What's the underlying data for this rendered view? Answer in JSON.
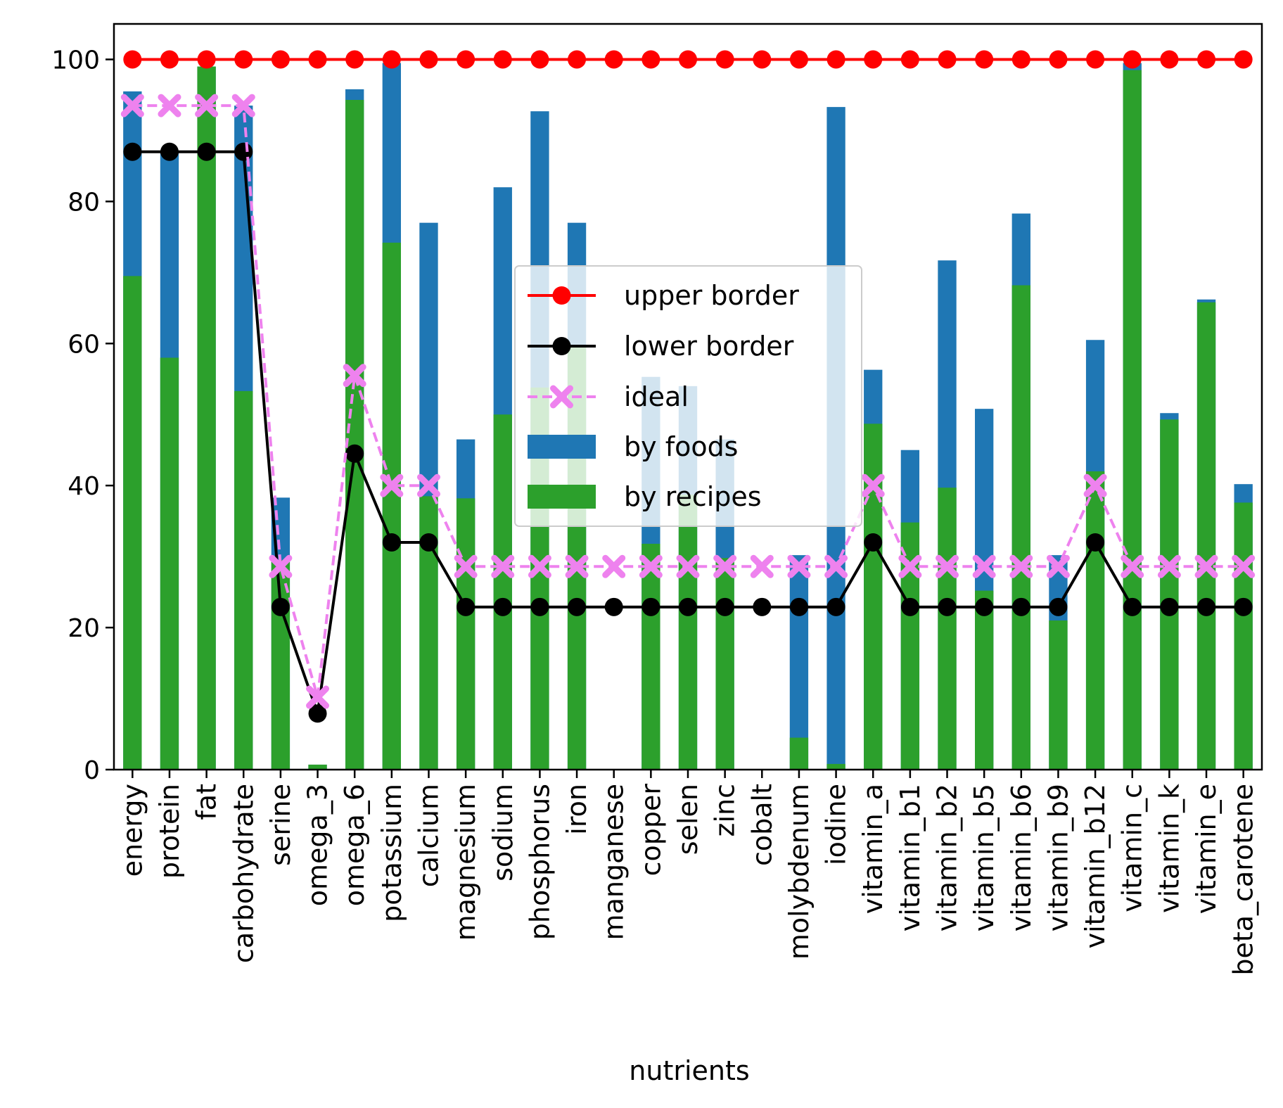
{
  "chart_data": {
    "type": "bar",
    "xlabel": "nutrients",
    "ylabel": "",
    "ylim": [
      0,
      105
    ],
    "yticks": [
      0,
      20,
      40,
      60,
      80,
      100
    ],
    "grid": false,
    "legend_position": "center",
    "categories": [
      "energy",
      "protein",
      "fat",
      "carbohydrate",
      "serine",
      "omega_3",
      "omega_6",
      "potassium",
      "calcium",
      "magnesium",
      "sodium",
      "phosphorus",
      "iron",
      "manganese",
      "copper",
      "selen",
      "zinc",
      "cobalt",
      "molybdenum",
      "iodine",
      "vitamin_a",
      "vitamin_b1",
      "vitamin_b2",
      "vitamin_b5",
      "vitamin_b6",
      "vitamin_b9",
      "vitamin_b12",
      "vitamin_c",
      "vitamin_k",
      "vitamin_e",
      "beta_carotene"
    ],
    "bars": [
      {
        "name": "by foods",
        "color": "#1f77b4",
        "values": [
          95.5,
          87,
          99,
          93.5,
          38.3,
          0.7,
          95.8,
          99.5,
          77,
          46.5,
          82,
          92.7,
          77,
          0,
          55.3,
          54,
          46.5,
          0,
          30.2,
          93.3,
          56.3,
          45,
          71.7,
          50.8,
          78.3,
          30.2,
          60.5,
          99.5,
          50.2,
          66.2,
          40.2
        ]
      },
      {
        "name": "by recipes",
        "color": "#2ca02c",
        "values": [
          69.5,
          58,
          99,
          53.3,
          29.5,
          0.7,
          94.3,
          74.2,
          38.5,
          38.2,
          50,
          53.8,
          59.5,
          0,
          31.8,
          38.7,
          29.8,
          0,
          4.5,
          0.8,
          48.7,
          34.8,
          39.7,
          25.2,
          68.2,
          21,
          42,
          98.5,
          49.3,
          65.8,
          37.6
        ]
      }
    ],
    "lines": [
      {
        "name": "upper border",
        "color": "#ff0000",
        "style": "solid",
        "marker": "circle",
        "values": [
          100,
          100,
          100,
          100,
          100,
          100,
          100,
          100,
          100,
          100,
          100,
          100,
          100,
          100,
          100,
          100,
          100,
          100,
          100,
          100,
          100,
          100,
          100,
          100,
          100,
          100,
          100,
          100,
          100,
          100,
          100
        ]
      },
      {
        "name": "lower border",
        "color": "#000000",
        "style": "solid",
        "marker": "circle",
        "values": [
          87,
          87,
          87,
          87,
          22.9,
          7.9,
          44.5,
          32,
          32,
          22.9,
          22.9,
          22.9,
          22.9,
          22.9,
          22.9,
          22.9,
          22.9,
          22.9,
          22.9,
          22.9,
          32,
          22.9,
          22.9,
          22.9,
          22.9,
          22.9,
          32,
          22.9,
          22.9,
          22.9,
          22.9
        ]
      },
      {
        "name": "ideal",
        "color": "#ee82ee",
        "style": "dashed",
        "marker": "x",
        "values": [
          93.5,
          93.5,
          93.5,
          93.5,
          28.6,
          10.2,
          55.5,
          40,
          40,
          28.6,
          28.6,
          28.6,
          28.6,
          28.6,
          28.6,
          28.6,
          28.6,
          28.6,
          28.6,
          28.6,
          40,
          28.6,
          28.6,
          28.6,
          28.6,
          28.6,
          40,
          28.6,
          28.6,
          28.6,
          28.6
        ]
      }
    ],
    "legend": [
      "upper border",
      "lower border",
      "ideal",
      "by foods",
      "by recipes"
    ]
  }
}
